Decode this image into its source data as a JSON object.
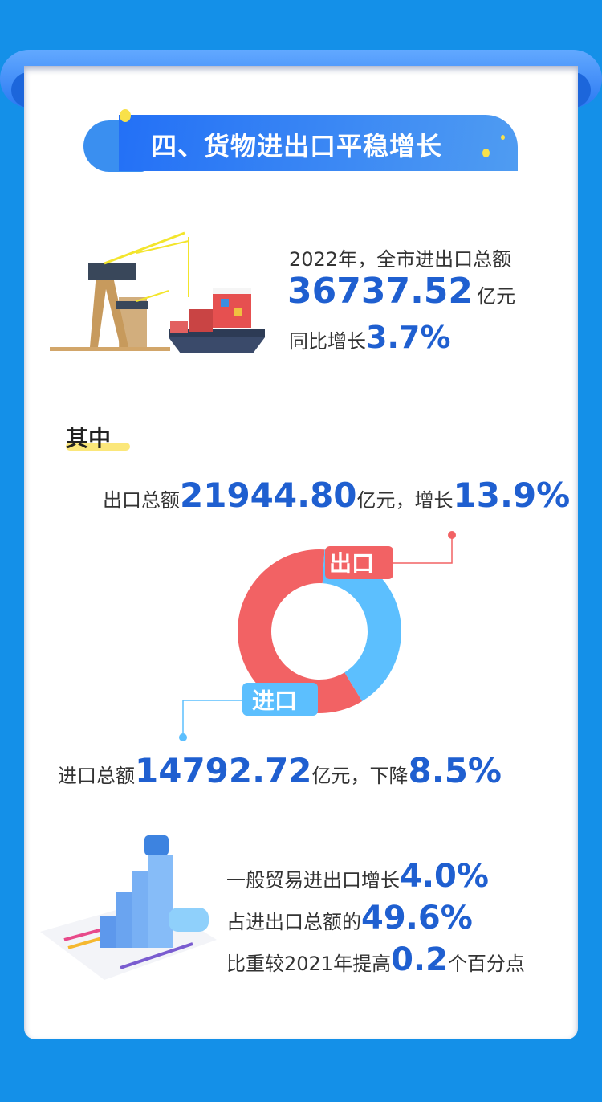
{
  "title": "四、货物进出口平稳增长",
  "summary": {
    "line1": "2022年，全市进出口总额",
    "total_value": "36737.52",
    "total_unit": "亿元",
    "growth_label": "同比增长",
    "growth_value": "3.7%"
  },
  "section_label": "其中",
  "export": {
    "label": "出口总额",
    "value": "21944.80",
    "unit": "亿元，增长",
    "change": "13.9%",
    "donut_label": "出口",
    "color": "#f26264"
  },
  "import": {
    "label": "进口总额",
    "value": "14792.72",
    "unit": "亿元，下降",
    "change": "8.5%",
    "donut_label": "进口",
    "color": "#5cbffe"
  },
  "general_trade": {
    "line1_text": "一般贸易进出口增长",
    "line1_value": "4.0%",
    "line2_text": "占进出口总额的",
    "line2_value": "49.6%",
    "line3_text_a": "比重较2021年提高",
    "line3_value": "0.2",
    "line3_text_b": "个百分点"
  },
  "chart_data": {
    "type": "pie",
    "categories": [
      "出口",
      "进口"
    ],
    "values": [
      21944.8,
      14792.72
    ],
    "colors": [
      "#f26264",
      "#5cbffe"
    ]
  },
  "colors": {
    "background": "#1490e8",
    "accent": "#1f5fd0",
    "banner": "#2370f6"
  }
}
